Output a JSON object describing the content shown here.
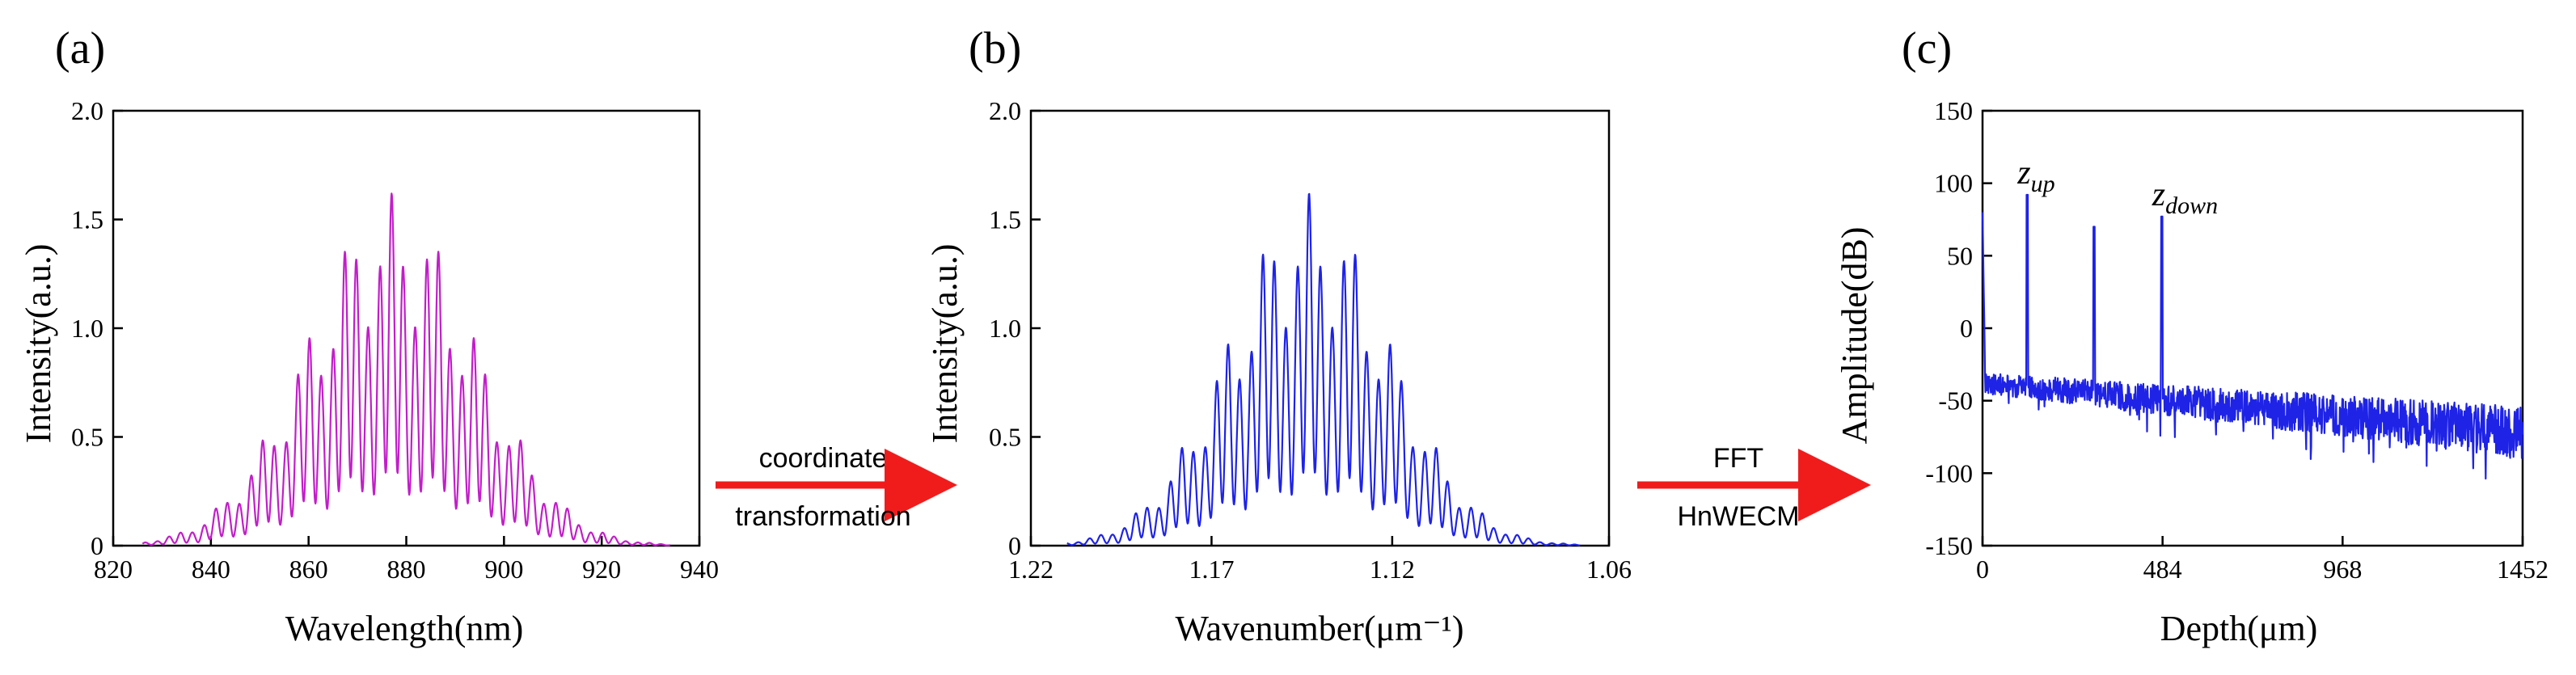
{
  "colors": {
    "panel_a": "#c21ec9",
    "panel_b": "#1e23e6",
    "panel_c": "#1e23e6",
    "arrow": "#f01c1c"
  },
  "arrows": [
    {
      "lines": [
        "coordinate",
        "transformation"
      ]
    },
    {
      "lines": [
        "FFT",
        "HnWECM"
      ]
    }
  ],
  "chart_data": [
    {
      "panel": "(a)",
      "type": "line",
      "title": "",
      "xlabel": "Wavelength(nm)",
      "ylabel": "Intensity(a.u.)",
      "xlim": [
        820,
        940
      ],
      "ylim": [
        0,
        2.0
      ],
      "xticks": [
        820,
        840,
        860,
        880,
        900,
        920,
        940
      ],
      "xtick_labels": [
        "820",
        "840",
        "860",
        "880",
        "900",
        "920",
        "940"
      ],
      "yticks": [
        0,
        0.5,
        1.0,
        1.5,
        2.0
      ],
      "ytick_labels": [
        "0",
        "0.5",
        "1.0",
        "1.5",
        "2.0"
      ],
      "series": [
        {
          "name": "spectrum",
          "kind": "fringe",
          "envelope_center": 877,
          "envelope_sigma": 17,
          "peak": 1.62,
          "fringe_period": 2.4,
          "modulation_depth": 0.78,
          "x_range": [
            826,
            934
          ]
        }
      ]
    },
    {
      "panel": "(b)",
      "type": "line",
      "title": "",
      "xlabel": "Wavenumber(μm⁻¹)",
      "ylabel": "Intensity(a.u.)",
      "xlim": [
        1.22,
        1.06
      ],
      "ylim": [
        0,
        2.0
      ],
      "xticks": [
        1.22,
        1.17,
        1.12,
        1.06
      ],
      "xtick_labels": [
        "1.22",
        "1.17",
        "1.12",
        "1.06"
      ],
      "yticks": [
        0,
        0.5,
        1.0,
        1.5,
        2.0
      ],
      "ytick_labels": [
        "0",
        "0.5",
        "1.0",
        "1.5",
        "2.0"
      ],
      "series": [
        {
          "name": "spectrum",
          "kind": "fringe",
          "envelope_center": 1.143,
          "envelope_sigma": 0.022,
          "peak": 1.62,
          "fringe_period": 0.0032,
          "modulation_depth": 0.78,
          "x_range": [
            1.21,
            1.068
          ]
        }
      ]
    },
    {
      "panel": "(c)",
      "type": "line",
      "title": "",
      "xlabel": "Depth(μm)",
      "ylabel": "Amplitude(dB)",
      "xlim": [
        0,
        1452
      ],
      "ylim": [
        -150,
        150
      ],
      "xticks": [
        0,
        484,
        968,
        1452
      ],
      "xtick_labels": [
        "0",
        "484",
        "968",
        "1452"
      ],
      "yticks": [
        -150,
        -100,
        -50,
        0,
        50,
        100,
        150
      ],
      "ytick_labels": [
        "-150",
        "-100",
        "-50",
        "0",
        "50",
        "100",
        "150"
      ],
      "series": [
        {
          "name": "a-scan",
          "kind": "noise_floor",
          "floor_start": -38,
          "floor_end": -72,
          "noise": 12,
          "peaks": [
            {
              "x": 120,
              "y": 92
            },
            {
              "x": 300,
              "y": 70
            },
            {
              "x": 482,
              "y": 77
            }
          ]
        }
      ],
      "annotations": [
        {
          "text": "z",
          "sub": "up",
          "x": 120,
          "y": 92
        },
        {
          "text": "z",
          "sub": "down",
          "x": 482,
          "y": 77
        }
      ]
    }
  ]
}
